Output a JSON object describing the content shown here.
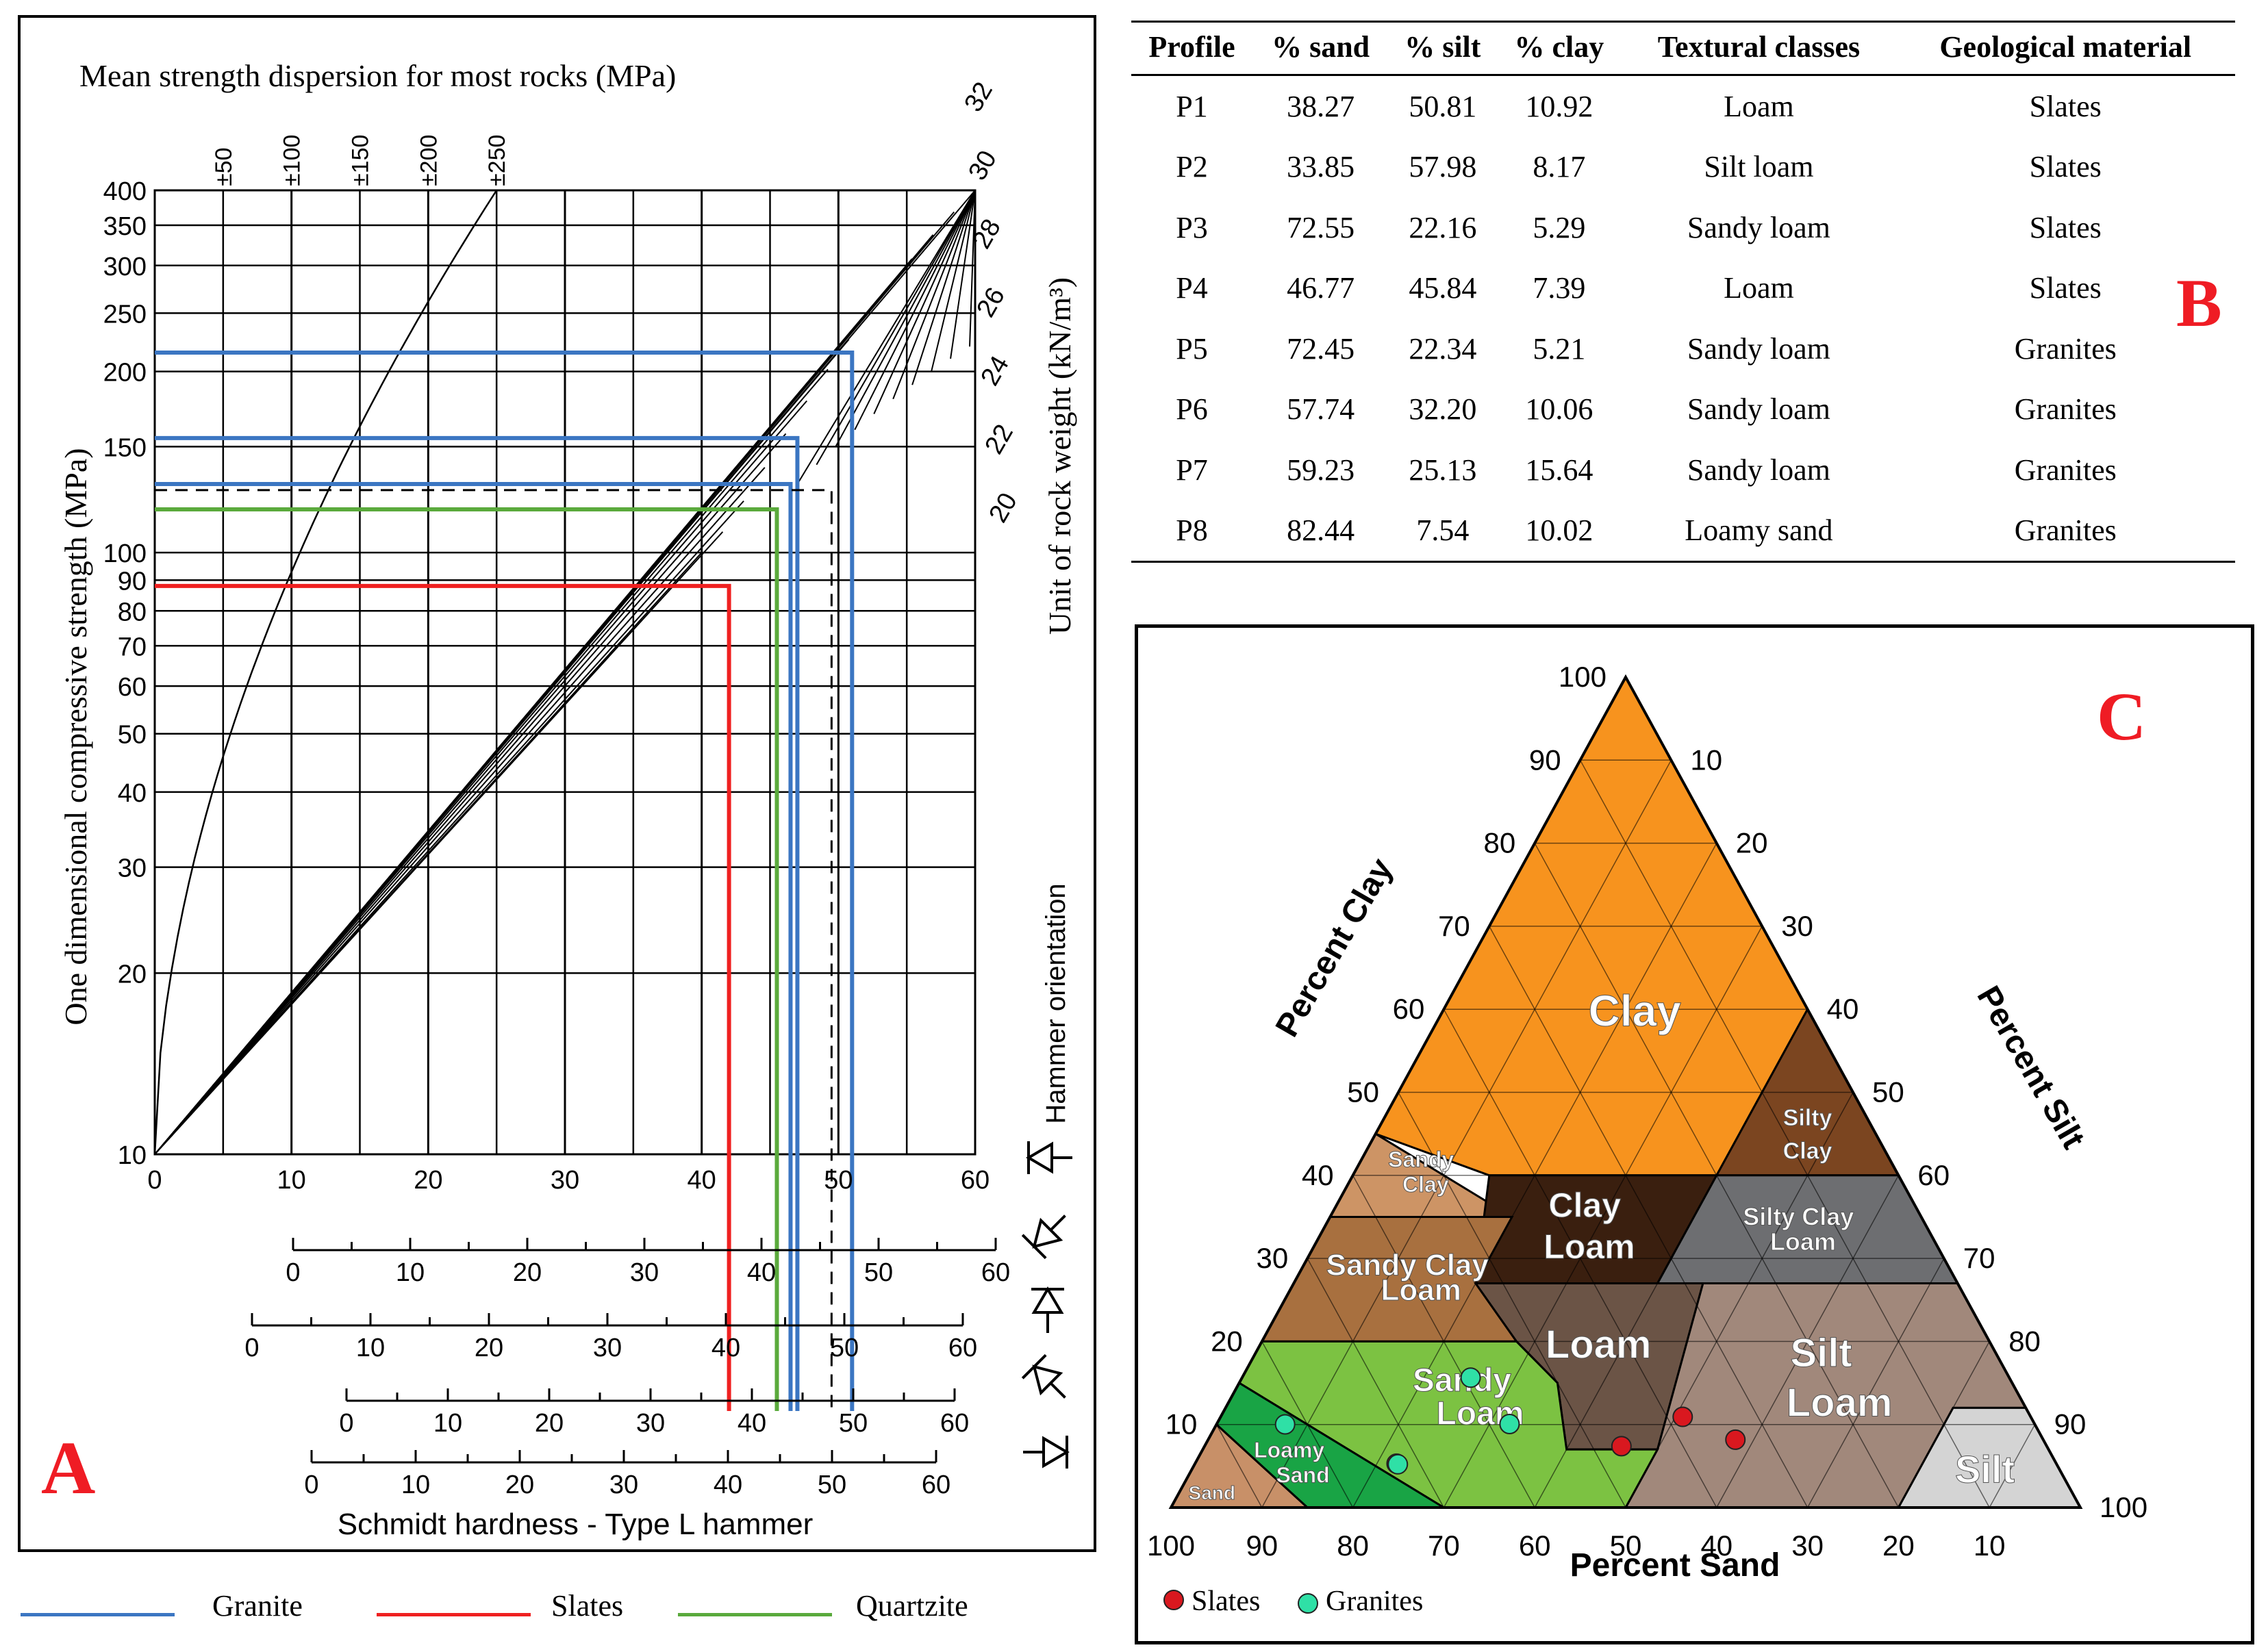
{
  "panel_letters": {
    "a": "A",
    "b": "B",
    "c": "C"
  },
  "legend_a": [
    {
      "label": "Granite",
      "color": "#3b76c2"
    },
    {
      "label": "Slates",
      "color": "#ef2020"
    },
    {
      "label": "Quartzite",
      "color": "#5aaa3c"
    }
  ],
  "table_b": {
    "headers": [
      "Profile",
      "% sand",
      "% silt",
      "% clay",
      "Textural classes",
      "Geological material"
    ],
    "rows": [
      [
        "P1",
        "38.27",
        "50.81",
        "10.92",
        "Loam",
        "Slates"
      ],
      [
        "P2",
        "33.85",
        "57.98",
        "8.17",
        "Silt loam",
        "Slates"
      ],
      [
        "P3",
        "72.55",
        "22.16",
        "5.29",
        "Sandy loam",
        "Slates"
      ],
      [
        "P4",
        "46.77",
        "45.84",
        "7.39",
        "Loam",
        "Slates"
      ],
      [
        "P5",
        "72.45",
        "22.34",
        "5.21",
        "Sandy loam",
        "Granites"
      ],
      [
        "P6",
        "57.74",
        "32.20",
        "10.06",
        "Sandy loam",
        "Granites"
      ],
      [
        "P7",
        "59.23",
        "25.13",
        "15.64",
        "Sandy loam",
        "Granites"
      ],
      [
        "P8",
        "82.44",
        "7.54",
        "10.02",
        "Loamy sand",
        "Granites"
      ]
    ]
  },
  "chart_data": [
    {
      "type": "line",
      "title": "Mean strength dispersion for most rocks (MPa)",
      "xlabel": "Schmidt hardness - Type L hammer",
      "ylabel": "One dimensional compressive strength (MPa)",
      "y2label": "Unit of rock weight (kN/m³)",
      "orientation_label": "Hammer orientation",
      "xlim": [
        0,
        60
      ],
      "ylim": [
        10,
        400
      ],
      "yscale": "log",
      "x_ticks": [
        0,
        10,
        20,
        30,
        40,
        50,
        60
      ],
      "y_ticks": [
        10,
        20,
        30,
        40,
        50,
        60,
        70,
        80,
        90,
        100,
        150,
        200,
        250,
        300,
        350,
        400
      ],
      "dispersion_ticks": [
        "±50",
        "±100",
        "±150",
        "±200",
        "±250"
      ],
      "dispersion_x": [
        5,
        10,
        15,
        20,
        25
      ],
      "weight_lines": [
        20,
        22,
        24,
        26,
        28,
        30,
        32
      ],
      "weight_labels": [
        "20",
        "22",
        "24",
        "26",
        "28",
        "30",
        "32"
      ],
      "secondary_scales": [
        {
          "offset": 9,
          "ticks": [
            "0",
            "10",
            "20",
            "30",
            "40",
            "50",
            "60"
          ]
        },
        {
          "offset": 6,
          "ticks": [
            "0",
            "10",
            "20",
            "30",
            "40",
            "50",
            "60"
          ]
        },
        {
          "offset": 13,
          "ticks": [
            "0",
            "10",
            "20",
            "30",
            "40",
            "50",
            "60"
          ]
        },
        {
          "offset": 10,
          "ticks": [
            "0",
            "10",
            "20",
            "30",
            "40",
            "50",
            "60"
          ]
        }
      ],
      "series": [
        {
          "name": "Granite",
          "color": "#3b76c2",
          "points": [
            [
              51,
              215
            ],
            [
              47,
              155
            ],
            [
              46.5,
              130
            ]
          ]
        },
        {
          "name": "Slates",
          "color": "#ef2020",
          "points": [
            [
              42,
              88
            ]
          ]
        },
        {
          "name": "Quartzite",
          "color": "#5aaa3c",
          "points": [
            [
              45.5,
              118
            ]
          ]
        },
        {
          "name": "reference",
          "color": "#000000",
          "dashed": true,
          "points": [
            [
              49.5,
              127
            ]
          ]
        }
      ]
    },
    {
      "type": "ternary",
      "axes": {
        "clay": "Percent Clay",
        "silt": "Percent Silt",
        "sand": "Percent Sand"
      },
      "axis_ticks": [
        "10",
        "20",
        "30",
        "40",
        "50",
        "60",
        "70",
        "80",
        "90",
        "100"
      ],
      "regions": [
        {
          "label": "Clay",
          "color": "#f7931e"
        },
        {
          "label": "Silty Clay",
          "color": "#7b4520"
        },
        {
          "label": "Sandy Clay",
          "color": "#cd9465"
        },
        {
          "label": "Clay Loam",
          "color": "#3a1f0f"
        },
        {
          "label": "Silty Clay Loam",
          "color": "#6d6e71"
        },
        {
          "label": "Sandy Clay Loam",
          "color": "#a8703f"
        },
        {
          "label": "Loam",
          "color": "#6b5446"
        },
        {
          "label": "Silt Loam",
          "color": "#a1887b"
        },
        {
          "label": "Sandy Loam",
          "color": "#7cc242"
        },
        {
          "label": "Loamy Sand",
          "color": "#19a445"
        },
        {
          "label": "Sand",
          "color": "#c89068"
        },
        {
          "label": "Silt",
          "color": "#d4d4d4"
        }
      ],
      "legend": [
        {
          "label": "Slates",
          "color": "#d9181f"
        },
        {
          "label": "Granites",
          "color": "#2fe0a6"
        }
      ],
      "points": [
        {
          "group": "Slates",
          "sand": 38.27,
          "silt": 50.81,
          "clay": 10.92
        },
        {
          "group": "Slates",
          "sand": 33.85,
          "silt": 57.98,
          "clay": 8.17
        },
        {
          "group": "Slates",
          "sand": 72.55,
          "silt": 22.16,
          "clay": 5.29
        },
        {
          "group": "Slates",
          "sand": 46.77,
          "silt": 45.84,
          "clay": 7.39
        },
        {
          "group": "Granites",
          "sand": 72.45,
          "silt": 22.34,
          "clay": 5.21
        },
        {
          "group": "Granites",
          "sand": 57.74,
          "silt": 32.2,
          "clay": 10.06
        },
        {
          "group": "Granites",
          "sand": 59.23,
          "silt": 25.13,
          "clay": 15.64
        },
        {
          "group": "Granites",
          "sand": 82.44,
          "silt": 7.54,
          "clay": 10.02
        }
      ]
    }
  ]
}
